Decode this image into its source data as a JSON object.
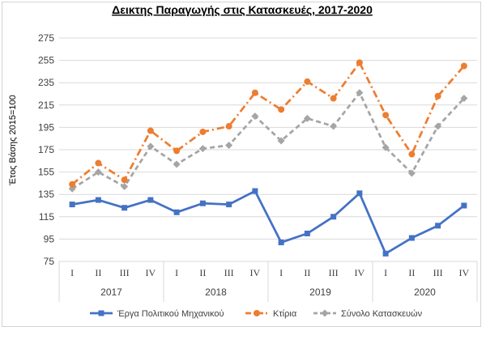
{
  "chart_data": {
    "type": "line",
    "title": "Δεικτης Παραγωγής στις Κατασκευές, 2017-2020",
    "xlabel": "",
    "ylabel": "Έτος Βάσης 2015=100",
    "ylim": [
      75,
      275
    ],
    "yticks": [
      75,
      95,
      115,
      135,
      155,
      175,
      195,
      215,
      235,
      255,
      275
    ],
    "grid": true,
    "legend_position": "bottom",
    "categories": [
      "I",
      "II",
      "III",
      "IV",
      "I",
      "II",
      "III",
      "IV",
      "I",
      "II",
      "III",
      "IV",
      "I",
      "II",
      "III",
      "IV"
    ],
    "groups": [
      {
        "label": "2017",
        "count": 4
      },
      {
        "label": "2018",
        "count": 4
      },
      {
        "label": "2019",
        "count": 4
      },
      {
        "label": "2020",
        "count": 4
      }
    ],
    "series": [
      {
        "name": "Έργα Πολιτικού Μηχανικού",
        "color": "#4472c4",
        "style": "solid",
        "marker": "square",
        "values": [
          126,
          130,
          123,
          130,
          119,
          127,
          126,
          138,
          92,
          100,
          115,
          136,
          82,
          96,
          107,
          125
        ]
      },
      {
        "name": "Κτίρια",
        "color": "#ed7d31",
        "style": "dash-dot",
        "marker": "circle",
        "values": [
          144,
          163,
          148,
          192,
          174,
          191,
          196,
          226,
          211,
          236,
          221,
          253,
          206,
          171,
          223,
          250
        ]
      },
      {
        "name": "Σύνολο Κατασκευών",
        "color": "#a5a5a5",
        "style": "dash",
        "marker": "diamond",
        "values": [
          140,
          155,
          142,
          178,
          162,
          176,
          179,
          205,
          183,
          203,
          196,
          226,
          177,
          154,
          196,
          221
        ]
      }
    ]
  }
}
